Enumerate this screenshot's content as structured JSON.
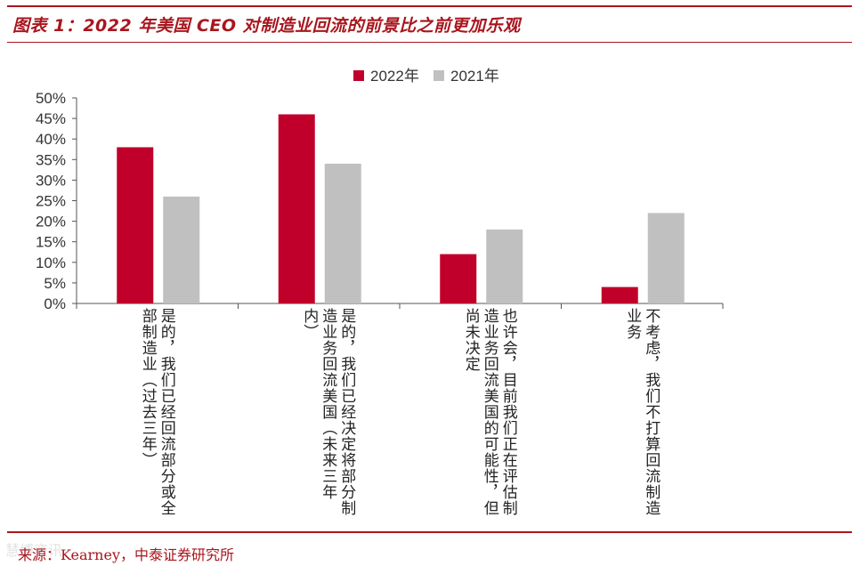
{
  "header": {
    "title": "图表 1：2022 年美国 CEO 对制造业回流的前景比之前更加乐观"
  },
  "footer": {
    "source": "来源：Kearney，中泰证券研究所",
    "watermark": "慧博资讯"
  },
  "chart_data": {
    "type": "bar",
    "categories": [
      "是的，我们已经回流部分或全部制造业（过去三年）",
      "是的，我们已经决定将部分制造业务回流美国（未来三年内）",
      "也许会，目前我们正在评估制造业务回流美国的可能性，但尚未决定",
      "不考虑，我们不打算回流制造业务"
    ],
    "series": [
      {
        "name": "2022年",
        "values": [
          38,
          46,
          12,
          4
        ],
        "color": "#c0002a"
      },
      {
        "name": "2021年",
        "values": [
          26,
          34,
          18,
          22
        ],
        "color": "#c0c0c0"
      }
    ],
    "ylim": [
      0,
      50
    ],
    "yticks": [
      "0%",
      "5%",
      "10%",
      "15%",
      "20%",
      "25%",
      "30%",
      "35%",
      "40%",
      "45%",
      "50%"
    ],
    "grid": false,
    "legend": "top-center"
  }
}
